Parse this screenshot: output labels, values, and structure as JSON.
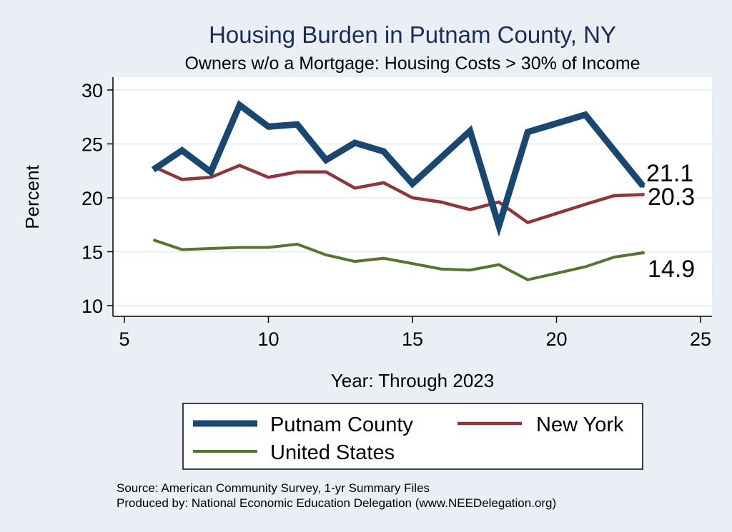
{
  "chart_data": {
    "type": "line",
    "title": "Housing Burden in Putnam County, NY",
    "subtitle": "Owners w/o a Mortgage: Housing Costs > 30% of Income",
    "xlabel": "Year: Through 2023",
    "ylabel": "Percent",
    "xlim": [
      5,
      25
    ],
    "ylim": [
      10,
      30
    ],
    "xticks": [
      5,
      10,
      15,
      20,
      25
    ],
    "yticks": [
      10,
      15,
      20,
      25,
      30
    ],
    "grid": true,
    "legend_position": "bottom",
    "x": [
      6,
      7,
      8,
      9,
      10,
      11,
      12,
      13,
      14,
      15,
      16,
      17,
      18,
      19,
      20,
      21,
      22,
      23
    ],
    "series": [
      {
        "name": "Putnam County",
        "color": "#1a476f",
        "values": [
          22.6,
          24.4,
          22.4,
          28.6,
          26.6,
          26.8,
          23.5,
          25.1,
          24.3,
          21.3,
          null,
          26.2,
          17.4,
          26.1,
          null,
          27.7,
          null,
          21.1
        ],
        "end_label": "21.1"
      },
      {
        "name": "New York",
        "color": "#90353b",
        "values": [
          22.9,
          21.7,
          21.9,
          23.0,
          21.9,
          22.4,
          22.4,
          20.9,
          21.4,
          20.0,
          19.6,
          18.9,
          19.6,
          17.7,
          null,
          19.4,
          20.2,
          20.3
        ],
        "end_label": "20.3"
      },
      {
        "name": "United States",
        "color": "#55752f",
        "values": [
          16.1,
          15.2,
          15.3,
          15.4,
          15.4,
          15.7,
          14.7,
          14.1,
          14.4,
          13.9,
          13.4,
          13.3,
          13.8,
          12.4,
          null,
          13.6,
          14.5,
          14.9
        ],
        "end_label": "14.9"
      }
    ]
  },
  "footer": {
    "source": "Source: American Community Survey, 1-yr Summary Files",
    "produced_by": "Produced by: National Economic Education Delegation (www.NEEDelegation.org)"
  }
}
